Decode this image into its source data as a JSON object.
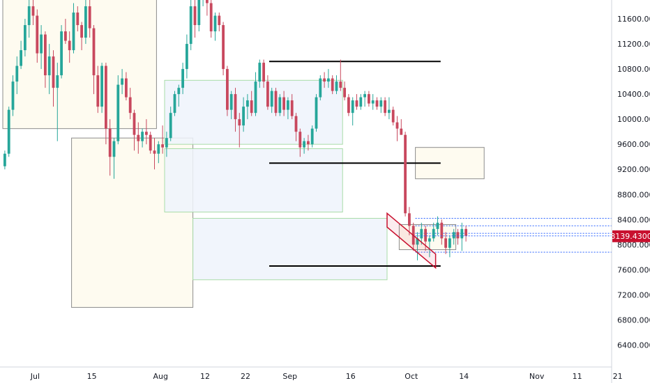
{
  "chart_data": {
    "type": "candlestick",
    "title": "",
    "xlabel": "",
    "ylabel": "",
    "ylim": [
      6050,
      11900
    ],
    "grid": false,
    "legend": "none",
    "colors": {
      "up": "#26a69a",
      "down": "#c8485e",
      "zone_blue_fill": "#eef3fc",
      "zone_blue_stroke": "#a9dca9",
      "zone_yellow_fill": "#fdf9ea",
      "zone_yellow_stroke": "#8c8c8c",
      "level_line": "#000000",
      "dotted_level": "#2962ff",
      "current_price": "#c8102e"
    },
    "y_ticks": [
      "6400.0000",
      "6800.0000",
      "7200.0000",
      "7600.0000",
      "8000.0000",
      "8400.0000",
      "8800.0000",
      "9200.0000",
      "9600.0000",
      "10000.0000",
      "10400.0000",
      "10800.0000",
      "11200.0000",
      "11600.0000"
    ],
    "y_tick_values": [
      6400,
      6800,
      7200,
      7600,
      8000,
      8400,
      8800,
      9200,
      9600,
      10000,
      10400,
      10800,
      11200,
      11600
    ],
    "x_ticks": [
      {
        "label": "Jul",
        "index": 8
      },
      {
        "label": "15",
        "index": 22
      },
      {
        "label": "Aug",
        "index": 39
      },
      {
        "label": "12",
        "index": 50
      },
      {
        "label": "22",
        "index": 60
      },
      {
        "label": "Sep",
        "index": 71
      },
      {
        "label": "16",
        "index": 86
      },
      {
        "label": "Oct",
        "index": 101
      },
      {
        "label": "14",
        "index": 114
      },
      {
        "label": "Nov",
        "index": 132
      },
      {
        "label": "11",
        "index": 142
      },
      {
        "label": "21",
        "index": 152
      }
    ],
    "current_price": {
      "label": "8139.4300",
      "value": 8139.43
    },
    "candles": [
      [
        9250,
        9500,
        9200,
        9450
      ],
      [
        9450,
        10200,
        9400,
        10150
      ],
      [
        10150,
        10700,
        10050,
        10600
      ],
      [
        10600,
        11000,
        10400,
        10850
      ],
      [
        10850,
        11250,
        10800,
        11100
      ],
      [
        11100,
        11600,
        11000,
        11500
      ],
      [
        11500,
        11900,
        11300,
        11800
      ],
      [
        11800,
        11950,
        11500,
        11650
      ],
      [
        11650,
        11750,
        10900,
        11050
      ],
      [
        11050,
        11500,
        10800,
        11350
      ],
      [
        11350,
        11400,
        10500,
        10700
      ],
      [
        10700,
        11200,
        10400,
        11000
      ],
      [
        11000,
        11100,
        10200,
        10500
      ],
      [
        10500,
        10900,
        9650,
        10700
      ],
      [
        10700,
        11500,
        10650,
        11400
      ],
      [
        11400,
        11600,
        11200,
        11250
      ],
      [
        11250,
        11400,
        10900,
        11100
      ],
      [
        11100,
        11850,
        11050,
        11700
      ],
      [
        11700,
        11800,
        11400,
        11500
      ],
      [
        11500,
        11550,
        11100,
        11300
      ],
      [
        11300,
        11900,
        11200,
        11800
      ],
      [
        11800,
        11900,
        11300,
        11450
      ],
      [
        11450,
        11500,
        10400,
        10700
      ],
      [
        10700,
        10850,
        10100,
        10200
      ],
      [
        10200,
        10900,
        10100,
        10850
      ],
      [
        10850,
        10900,
        9600,
        9850
      ],
      [
        9850,
        10000,
        9100,
        9400
      ],
      [
        9400,
        9700,
        9050,
        9650
      ],
      [
        9650,
        10700,
        9600,
        10550
      ],
      [
        10550,
        10800,
        10400,
        10650
      ],
      [
        10650,
        10750,
        10300,
        10350
      ],
      [
        10350,
        10500,
        10000,
        10100
      ],
      [
        10100,
        10150,
        9500,
        9750
      ],
      [
        9750,
        9950,
        9450,
        9650
      ],
      [
        9650,
        9850,
        9550,
        9800
      ],
      [
        9800,
        10000,
        9600,
        9750
      ],
      [
        9750,
        9800,
        9450,
        9500
      ],
      [
        9500,
        9700,
        9200,
        9450
      ],
      [
        9450,
        9650,
        9300,
        9600
      ],
      [
        9600,
        9900,
        9450,
        9550
      ],
      [
        9550,
        9800,
        9400,
        9700
      ],
      [
        9700,
        10200,
        9650,
        10100
      ],
      [
        10100,
        10450,
        10050,
        10400
      ],
      [
        10400,
        10550,
        10200,
        10500
      ],
      [
        10500,
        10900,
        10400,
        10800
      ],
      [
        10800,
        11350,
        10650,
        11200
      ],
      [
        11200,
        11900,
        11100,
        11800
      ],
      [
        11800,
        12000,
        11300,
        11500
      ],
      [
        11500,
        11950,
        11400,
        11900
      ],
      [
        11900,
        12100,
        11800,
        12000
      ],
      [
        12000,
        12050,
        11650,
        11850
      ],
      [
        11850,
        11950,
        11300,
        11400
      ],
      [
        11400,
        11700,
        11250,
        11650
      ],
      [
        11650,
        11700,
        11400,
        11500
      ],
      [
        11500,
        11550,
        10700,
        10800
      ],
      [
        10800,
        10850,
        10050,
        10150
      ],
      [
        10150,
        10450,
        10000,
        10400
      ],
      [
        10400,
        10500,
        9800,
        10000
      ],
      [
        10000,
        10100,
        9550,
        9900
      ],
      [
        9900,
        10350,
        9800,
        10200
      ],
      [
        10200,
        10400,
        10000,
        10300
      ],
      [
        10300,
        10450,
        10050,
        10100
      ],
      [
        10100,
        10750,
        10050,
        10600
      ],
      [
        10600,
        10950,
        10500,
        10900
      ],
      [
        10900,
        10950,
        10500,
        10600
      ],
      [
        10600,
        10700,
        10150,
        10200
      ],
      [
        10200,
        10500,
        10100,
        10450
      ],
      [
        10450,
        10500,
        10050,
        10100
      ],
      [
        10100,
        10400,
        10050,
        10350
      ],
      [
        10350,
        10450,
        10050,
        10150
      ],
      [
        10150,
        10350,
        10000,
        10300
      ],
      [
        10300,
        10400,
        10000,
        10050
      ],
      [
        10050,
        10100,
        9650,
        9800
      ],
      [
        9800,
        9850,
        9400,
        9550
      ],
      [
        9550,
        9700,
        9450,
        9650
      ],
      [
        9650,
        9750,
        9500,
        9600
      ],
      [
        9600,
        9900,
        9550,
        9850
      ],
      [
        9850,
        10400,
        9800,
        10350
      ],
      [
        10350,
        10700,
        10300,
        10650
      ],
      [
        10650,
        10750,
        10500,
        10600
      ],
      [
        10600,
        10800,
        10500,
        10650
      ],
      [
        10650,
        10700,
        10400,
        10450
      ],
      [
        10450,
        10700,
        10400,
        10600
      ],
      [
        10600,
        10950,
        10450,
        10500
      ],
      [
        10500,
        10600,
        10300,
        10350
      ],
      [
        10350,
        10400,
        10050,
        10100
      ],
      [
        10100,
        10350,
        9900,
        10300
      ],
      [
        10300,
        10400,
        10150,
        10200
      ],
      [
        10200,
        10400,
        10150,
        10350
      ],
      [
        10350,
        10450,
        10200,
        10400
      ],
      [
        10400,
        10450,
        10200,
        10250
      ],
      [
        10250,
        10400,
        10150,
        10300
      ],
      [
        10300,
        10350,
        10150,
        10200
      ],
      [
        10200,
        10350,
        10100,
        10300
      ],
      [
        10300,
        10350,
        10050,
        10100
      ],
      [
        10100,
        10350,
        10000,
        10150
      ],
      [
        10150,
        10200,
        9900,
        9950
      ],
      [
        9950,
        10050,
        9650,
        9850
      ],
      [
        9850,
        10000,
        9800,
        9750
      ],
      [
        9750,
        9800,
        8450,
        8500
      ],
      [
        8500,
        8600,
        8150,
        8300
      ],
      [
        8300,
        8350,
        7900,
        8000
      ],
      [
        8000,
        8200,
        7750,
        8100
      ],
      [
        8100,
        8350,
        8000,
        8250
      ],
      [
        8250,
        8300,
        7900,
        8050
      ],
      [
        8050,
        8150,
        7800,
        8100
      ],
      [
        8100,
        8350,
        8050,
        8250
      ],
      [
        8250,
        8450,
        8150,
        8350
      ],
      [
        8350,
        8400,
        8000,
        8100
      ],
      [
        8100,
        8200,
        7850,
        7950
      ],
      [
        7950,
        8150,
        7800,
        8100
      ],
      [
        8100,
        8250,
        8000,
        8200
      ],
      [
        8200,
        8250,
        8000,
        8100
      ],
      [
        8100,
        8350,
        7900,
        8250
      ],
      [
        8250,
        8300,
        8050,
        8140
      ]
    ],
    "zones": [
      {
        "kind": "yellow",
        "from_index": 0,
        "to_index": 38,
        "top": 11950,
        "bottom": 9850
      },
      {
        "kind": "yellow",
        "from_index": 17,
        "to_index": 47,
        "top": 9700,
        "bottom": 7000
      },
      {
        "kind": "blue",
        "from_index": 40,
        "to_index": 84,
        "top": 10620,
        "bottom": 9600
      },
      {
        "kind": "blue",
        "from_index": 40,
        "to_index": 84,
        "top": 9530,
        "bottom": 8520
      },
      {
        "kind": "blue",
        "from_index": 47,
        "to_index": 95,
        "top": 8420,
        "bottom": 7440
      },
      {
        "kind": "yellow",
        "from_index": 98,
        "to_index": 112,
        "top": 8320,
        "bottom": 7920
      },
      {
        "kind": "yellow",
        "from_index": 102,
        "to_index": 119,
        "top": 9550,
        "bottom": 9050
      }
    ],
    "levels": [
      {
        "from_index": 60,
        "to_index": 101,
        "value": 10920
      },
      {
        "from_index": 60,
        "to_index": 101,
        "value": 9300
      },
      {
        "from_index": 60,
        "to_index": 101,
        "value": 7660
      }
    ],
    "dotted_levels": [
      8420,
      8300,
      8180,
      7880
    ],
    "channel": {
      "x1_index": 95,
      "y1": 8500,
      "x2_index": 107,
      "y2": 7850,
      "offset": 220
    }
  }
}
